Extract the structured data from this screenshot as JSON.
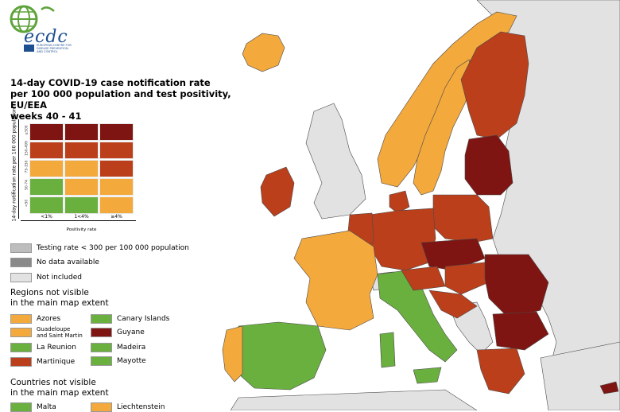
{
  "logo": {
    "name": "ecdc",
    "subtitle": "EUROPEAN CENTRE FOR DISEASE PREVENTION AND CONTROL"
  },
  "title": {
    "line1": "14-day COVID-19 case notification rate",
    "line2": "per 100 000 population and test positivity, EU/EEA",
    "line3": "weeks 40 - 41"
  },
  "colors": {
    "green": "#6ab03f",
    "orange": "#f3a93c",
    "red": "#bb3f1b",
    "darkred": "#7e1512",
    "grey_nodata": "#8a8a8a",
    "grey_testing": "#bdbdbd",
    "not_included": "#e2e2e2"
  },
  "matrix": {
    "y_axis_label": "14-day notification rate per 100 000 population",
    "y_ticks": [
      "≥500",
      "150-499",
      "75-150",
      "50-74",
      "<50"
    ],
    "x_axis_label": "Positivity rate",
    "x_ticks": [
      "<1%",
      "1<4%",
      "≥4%"
    ],
    "cells": [
      [
        "darkred",
        "darkred",
        "darkred"
      ],
      [
        "red",
        "red",
        "red"
      ],
      [
        "orange",
        "orange",
        "red"
      ],
      [
        "green",
        "orange",
        "orange"
      ],
      [
        "green",
        "green",
        "orange"
      ]
    ]
  },
  "legend": {
    "testing_rate": "Testing rate < 300 per 100 000 population",
    "no_data": "No data available",
    "not_included": "Not included"
  },
  "regions_header": {
    "line1": "Regions not visible",
    "line2": "in the main map extent"
  },
  "regions": [
    {
      "label": "Azores",
      "color": "orange"
    },
    {
      "label": "Canary Islands",
      "color": "green"
    },
    {
      "label": "Guadeloupe\nand Saint Martin",
      "color": "orange"
    },
    {
      "label": "Guyane",
      "color": "darkred"
    },
    {
      "label": "La Reunion",
      "color": "green"
    },
    {
      "label": "Madeira",
      "color": "green"
    },
    {
      "label": "Martinique",
      "color": "red"
    },
    {
      "label": "Mayotte",
      "color": "green"
    }
  ],
  "countries_header": {
    "line1": "Countries not visible",
    "line2": "in the main map extent"
  },
  "countries": [
    {
      "label": "Malta",
      "color": "green"
    },
    {
      "label": "Liechtenstein",
      "color": "orange"
    }
  ],
  "map_fill": {
    "iceland": "orange",
    "ireland": "red",
    "uk": "not_included",
    "norway": "orange",
    "sweden": "orange",
    "finland": "red",
    "baltics": "darkred",
    "poland": "red",
    "germany": "red",
    "france": "orange",
    "spain": "green",
    "portugal": "orange",
    "italy": "green",
    "czechia": "darkred",
    "hungary": "red",
    "romania": "darkred",
    "bulgaria": "darkred",
    "greece": "red",
    "balkans": "not_included",
    "switzerland": "not_included",
    "belarus_ukraine_russia": "not_included",
    "turkey": "not_included"
  }
}
